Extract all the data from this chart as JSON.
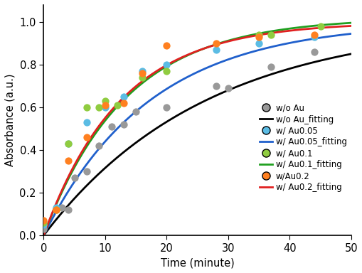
{
  "wo_au_x": [
    0,
    2,
    3,
    4,
    5,
    7,
    9,
    11,
    13,
    15,
    20,
    28,
    30,
    37,
    44
  ],
  "wo_au_y": [
    0.03,
    0.12,
    0.13,
    0.12,
    0.27,
    0.3,
    0.42,
    0.51,
    0.52,
    0.58,
    0.6,
    0.7,
    0.69,
    0.79,
    0.86
  ],
  "au005_x": [
    0,
    2,
    4,
    7,
    10,
    13,
    16,
    20,
    28,
    35,
    44
  ],
  "au005_y": [
    0.05,
    0.13,
    0.43,
    0.53,
    0.6,
    0.65,
    0.77,
    0.8,
    0.87,
    0.9,
    0.93
  ],
  "au01_x": [
    0,
    2,
    4,
    7,
    9,
    10,
    12,
    16,
    20,
    35,
    37,
    45
  ],
  "au01_y": [
    0.06,
    0.12,
    0.43,
    0.6,
    0.6,
    0.63,
    0.61,
    0.74,
    0.77,
    0.94,
    0.94,
    0.98
  ],
  "au02_x": [
    0,
    2,
    4,
    7,
    10,
    13,
    16,
    20,
    28,
    35,
    44
  ],
  "au02_y": [
    0.07,
    0.12,
    0.35,
    0.46,
    0.61,
    0.62,
    0.76,
    0.89,
    0.9,
    0.93,
    0.94
  ],
  "fit_curves": {
    "wo_au": {
      "A": 1.0,
      "k": 0.038
    },
    "au005": {
      "A": 1.0,
      "k": 0.058
    },
    "au01": {
      "A": 1.02,
      "k": 0.075
    },
    "au02": {
      "A": 1.0,
      "k": 0.08
    }
  },
  "colors": {
    "wo_au_dot": "#999999",
    "wo_au_line": "#000000",
    "au005_dot": "#5bbce4",
    "au005_line": "#2060cc",
    "au01_dot": "#90cc40",
    "au01_line": "#20a020",
    "au02_dot": "#ff8020",
    "au02_line": "#e02020"
  },
  "legend_labels": [
    "w/o Au",
    "w/o Au_fitting",
    "w/ Au0.05",
    "w/ Au0.05_fitting",
    "w/ Au0.1",
    "w/ Au0.1_fitting",
    "w/Au0.2",
    "w/ Au0.2_fitting"
  ],
  "xlabel": "Time (minute)",
  "ylabel": "Absorbance (a.u.)",
  "xlim": [
    0,
    50
  ],
  "ylim": [
    0,
    1.08
  ],
  "xticks": [
    0,
    10,
    20,
    30,
    40,
    50
  ],
  "yticks": [
    0,
    0.2,
    0.4,
    0.6,
    0.8,
    1.0
  ],
  "dot_size": 55,
  "line_width": 2.0,
  "font_size": 10.5,
  "legend_fontsize": 8.5
}
